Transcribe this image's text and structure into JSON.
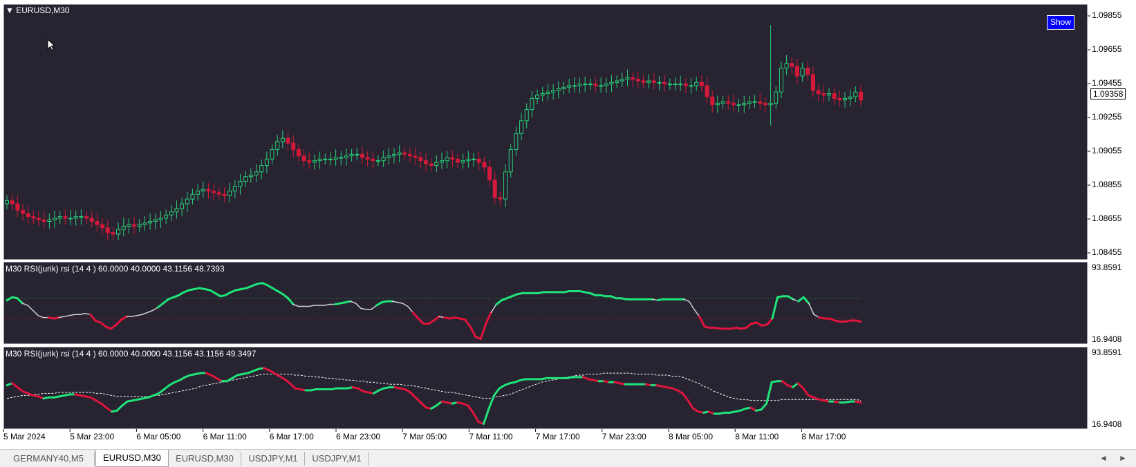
{
  "symbol_title": "EURUSD,M30",
  "show_button_label": "Show",
  "price_scale": [
    "1.09855",
    "1.09655",
    "1.09455",
    "1.09255",
    "1.09055",
    "1.08855",
    "1.08655",
    "1.08455"
  ],
  "current_price": "1.09358",
  "rsi1": {
    "title": "M30 RSI(jurik) rsi (14 4 ) 60.0000 40.0000 43.1156 48.7393",
    "scale_top": "93.8591",
    "scale_bottom": "16.9408"
  },
  "rsi2": {
    "title": "M30 RSI(jurik) rsi (14 4 ) 60.0000 40.0000 43.1156 43.1156 49.3497",
    "scale_top": "93.8591",
    "scale_bottom": "16.9408"
  },
  "time_labels": [
    "5 Mar 2024",
    "5 Mar 23:00",
    "6 Mar 05:00",
    "6 Mar 11:00",
    "6 Mar 17:00",
    "6 Mar 23:00",
    "7 Mar 05:00",
    "7 Mar 11:00",
    "7 Mar 17:00",
    "7 Mar 23:00",
    "8 Mar 05:00",
    "8 Mar 11:00",
    "8 Mar 17:00"
  ],
  "tabs": [
    {
      "label": "GERMANY40,M5",
      "active": false
    },
    {
      "label": "EURUSD,M30",
      "active": true
    },
    {
      "label": "EURUSD,M30",
      "active": false
    },
    {
      "label": "USDJPY,M1",
      "active": false
    },
    {
      "label": "USDJPY,M1",
      "active": false
    }
  ],
  "nav_left": "◄",
  "nav_right": "►",
  "colors": {
    "chart_bg": "#272330",
    "bull": "#27d37a",
    "bear": "#d4193a",
    "rsi_up": "#1ee57a",
    "rsi_down": "#e0143c",
    "rsi_neutral": "#d0d0d0",
    "level_upper": "#1c7a3a",
    "level_lower": "#8a1a2a"
  },
  "chart_data": {
    "type": "candlestick",
    "price_range": [
      1.0835,
      1.0995
    ],
    "rsi_range": [
      16.9408,
      93.8591
    ],
    "rsi_levels": [
      60,
      40
    ],
    "close": [
      1.0872,
      1.087,
      1.0866,
      1.0864,
      1.0862,
      1.0861,
      1.086,
      1.0859,
      1.086,
      1.0861,
      1.0862,
      1.0861,
      1.0861,
      1.0862,
      1.0862,
      1.0861,
      1.0859,
      1.0857,
      1.0855,
      1.0852,
      1.0851,
      1.0854,
      1.0856,
      1.0857,
      1.0856,
      1.0857,
      1.0858,
      1.0859,
      1.086,
      1.0861,
      1.0863,
      1.0865,
      1.0867,
      1.087,
      1.0873,
      1.0876,
      1.0878,
      1.0879,
      1.0878,
      1.0877,
      1.0876,
      1.0875,
      1.0878,
      1.0881,
      1.0884,
      1.0887,
      1.0888,
      1.089,
      1.0894,
      1.0898,
      1.0904,
      1.0909,
      1.0911,
      1.0908,
      1.0904,
      1.09,
      1.0897,
      1.0896,
      1.0897,
      1.0898,
      1.0898,
      1.0898,
      1.0899,
      1.0899,
      1.09,
      1.0901,
      1.0901,
      1.0899,
      1.0898,
      1.0897,
      1.0897,
      1.0899,
      1.09,
      1.0901,
      1.0902,
      1.0901,
      1.09,
      1.0899,
      1.0897,
      1.0895,
      1.0894,
      1.0896,
      1.0897,
      1.0899,
      1.0898,
      1.0896,
      1.0897,
      1.0898,
      1.0898,
      1.0896,
      1.0893,
      1.0885,
      1.0874,
      1.0873,
      1.089,
      1.0904,
      1.0914,
      1.0922,
      1.0929,
      1.0936,
      1.0938,
      1.0939,
      1.094,
      1.0941,
      1.0942,
      1.0943,
      1.0944,
      1.0944,
      1.0945,
      1.0945,
      1.0945,
      1.0944,
      1.0944,
      1.0945,
      1.0946,
      1.0947,
      1.0948,
      1.0949,
      1.0948,
      1.0947,
      1.0946,
      1.0947,
      1.0946,
      1.0946,
      1.0945,
      1.0945,
      1.0945,
      1.0945,
      1.0944,
      1.0944,
      1.0946,
      1.0944,
      1.0937,
      1.0932,
      1.0933,
      1.0934,
      1.0933,
      1.0932,
      1.0932,
      1.0933,
      1.0934,
      1.0934,
      1.0933,
      1.0932,
      1.0933,
      1.094,
      1.0955,
      1.0958,
      1.0956,
      1.095,
      1.0955,
      1.0951,
      1.0941,
      1.0939,
      1.0938,
      1.0939,
      1.0936,
      1.0935,
      1.0936,
      1.0937,
      1.094,
      1.0935
    ],
    "rsi1": [
      58,
      61,
      60,
      55,
      53,
      48,
      43,
      41,
      41,
      40,
      41,
      42,
      43,
      44,
      44,
      45,
      44,
      38,
      36,
      32,
      30,
      34,
      39,
      42,
      42,
      43,
      44,
      46,
      48,
      51,
      55,
      59,
      61,
      63,
      66,
      68,
      69,
      70,
      69,
      68,
      65,
      62,
      63,
      66,
      68,
      69,
      70,
      72,
      74,
      75,
      73,
      70,
      67,
      64,
      60,
      54,
      52,
      52,
      52,
      53,
      53,
      53,
      54,
      54,
      55,
      56,
      57,
      55,
      50,
      49,
      49,
      53,
      56,
      57,
      57,
      56,
      55,
      52,
      46,
      40,
      35,
      35,
      38,
      42,
      41,
      40,
      41,
      40,
      39,
      32,
      22,
      20,
      35,
      46,
      54,
      58,
      60,
      62,
      64,
      65,
      65,
      65,
      65,
      66,
      66,
      66,
      66,
      66,
      67,
      67,
      67,
      66,
      65,
      63,
      63,
      62,
      62,
      60,
      60,
      59,
      59,
      59,
      59,
      59,
      59,
      58,
      59,
      59,
      59,
      59,
      59,
      57,
      49,
      42,
      32,
      31,
      31,
      30,
      30,
      30,
      31,
      30,
      31,
      35,
      36,
      33,
      34,
      40,
      61,
      62,
      62,
      59,
      57,
      61,
      55,
      44,
      41,
      40,
      40,
      38,
      37,
      37,
      38,
      38,
      37
    ],
    "rsi2": [
      58,
      60,
      56,
      52,
      50,
      48,
      47,
      45,
      46,
      46,
      47,
      48,
      49,
      49,
      48,
      47,
      46,
      43,
      40,
      36,
      32,
      33,
      38,
      42,
      43,
      44,
      45,
      46,
      48,
      50,
      54,
      58,
      61,
      63,
      66,
      68,
      69,
      70,
      70,
      68,
      65,
      62,
      62,
      65,
      68,
      69,
      70,
      72,
      74,
      75,
      73,
      70,
      67,
      64,
      60,
      55,
      54,
      53,
      53,
      54,
      54,
      54,
      54,
      55,
      55,
      55,
      56,
      55,
      52,
      51,
      50,
      53,
      55,
      56,
      56,
      55,
      54,
      51,
      46,
      41,
      36,
      35,
      38,
      42,
      41,
      40,
      41,
      40,
      38,
      31,
      22,
      20,
      35,
      48,
      55,
      58,
      60,
      61,
      63,
      64,
      64,
      64,
      64,
      65,
      65,
      65,
      65,
      65,
      66,
      66,
      66,
      64,
      63,
      62,
      62,
      61,
      61,
      60,
      59,
      59,
      59,
      59,
      59,
      58,
      58,
      57,
      56,
      55,
      53,
      50,
      43,
      35,
      32,
      31,
      32,
      30,
      30,
      31,
      31,
      32,
      33,
      35,
      36,
      33,
      34,
      40,
      61,
      62,
      62,
      58,
      56,
      60,
      55,
      48,
      46,
      44,
      43,
      42,
      42,
      41,
      41,
      42,
      42,
      41
    ],
    "rsi2_signal": [
      45,
      46,
      47,
      48,
      48,
      49,
      49,
      50,
      50,
      50,
      51,
      51,
      51,
      51,
      51,
      51,
      51,
      50,
      50,
      49,
      48,
      47,
      47,
      47,
      47,
      47,
      47,
      47,
      48,
      48,
      49,
      50,
      51,
      52,
      53,
      54,
      55,
      57,
      58,
      59,
      60,
      61,
      62,
      63,
      64,
      65,
      66,
      67,
      68,
      69,
      69,
      69,
      69,
      69,
      69,
      68,
      68,
      67,
      67,
      66,
      66,
      65,
      65,
      64,
      64,
      63,
      63,
      62,
      62,
      61,
      61,
      60,
      60,
      59,
      59,
      59,
      58,
      58,
      57,
      56,
      55,
      54,
      53,
      52,
      51,
      51,
      50,
      49,
      48,
      47,
      46,
      45,
      45,
      46,
      47,
      48,
      49,
      51,
      53,
      55,
      57,
      59,
      61,
      62,
      63,
      64,
      65,
      66,
      67,
      68,
      68,
      69,
      69,
      69,
      70,
      70,
      70,
      70,
      70,
      70,
      69,
      69,
      69,
      69,
      68,
      68,
      68,
      67,
      67,
      66,
      64,
      62,
      60,
      57,
      55,
      52,
      50,
      48,
      46,
      45,
      44,
      44,
      43,
      43,
      43,
      43,
      43,
      43,
      44,
      44,
      44,
      44,
      44,
      44,
      44,
      44,
      44,
      44,
      44,
      44,
      44,
      44,
      44,
      43
    ]
  }
}
